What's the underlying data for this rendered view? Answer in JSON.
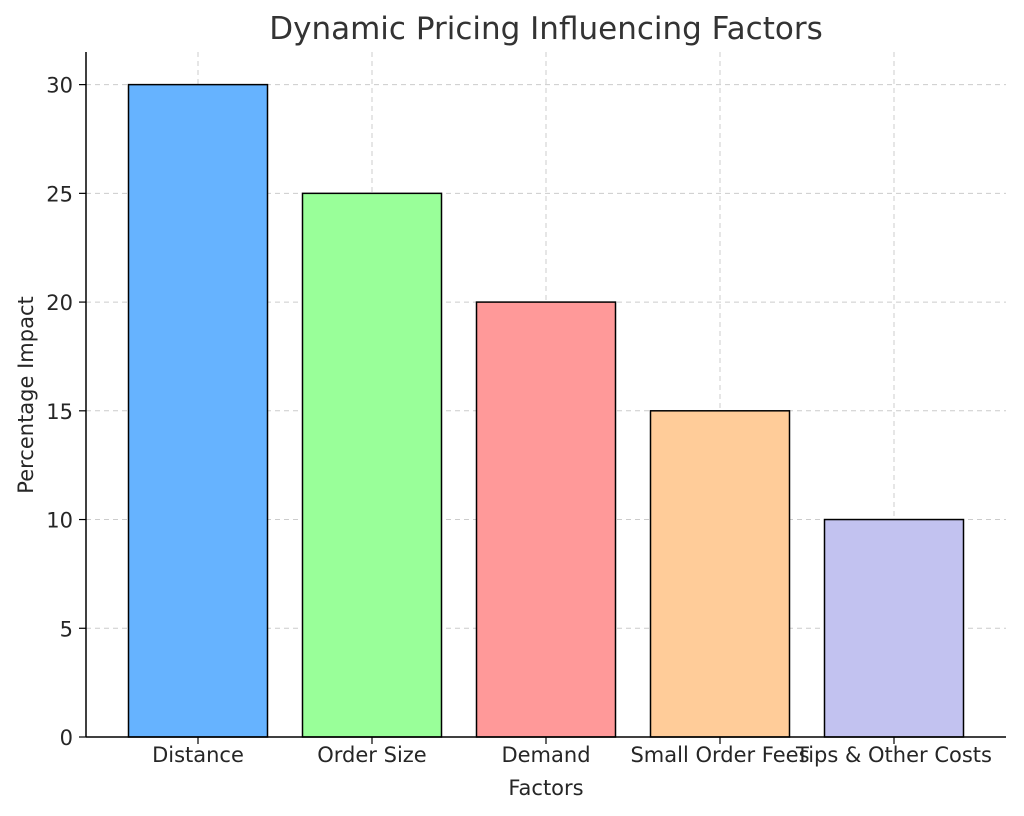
{
  "chart_data": {
    "type": "bar",
    "title": "Dynamic Pricing Influencing Factors",
    "xlabel": "Factors",
    "ylabel": "Percentage Impact",
    "categories": [
      "Distance",
      "Order Size",
      "Demand",
      "Small Order Fees",
      "Tips & Other Costs"
    ],
    "values": [
      30,
      25,
      20,
      15,
      10
    ],
    "colors": [
      "#66b3ff",
      "#99ff99",
      "#ff9999",
      "#ffcc99",
      "#c2c2f0"
    ],
    "ylim": [
      0,
      31.5
    ],
    "yticks": [
      0,
      5,
      10,
      15,
      20,
      25,
      30
    ],
    "grid": true,
    "legend": false
  }
}
